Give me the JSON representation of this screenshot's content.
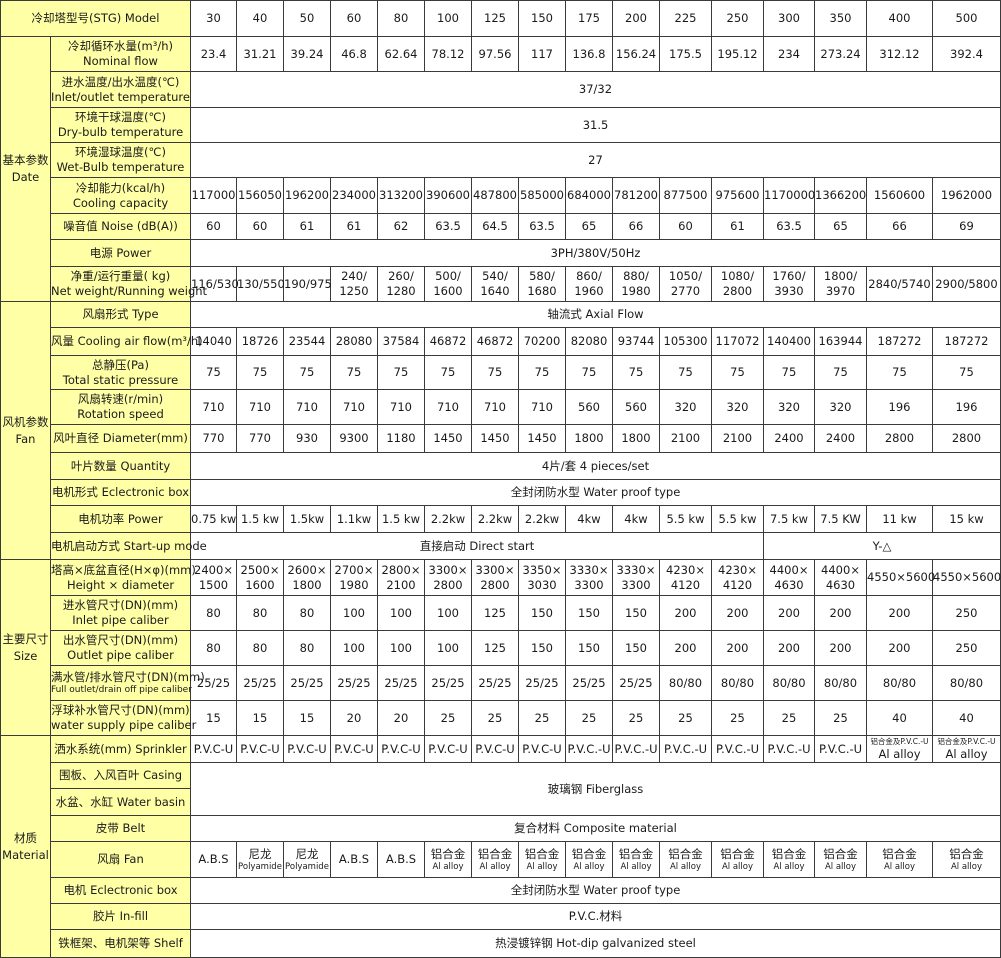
{
  "header": {
    "label": "冷却塔型号(STG) Model",
    "models": [
      "30",
      "40",
      "50",
      "60",
      "80",
      "100",
      "125",
      "150",
      "175",
      "200",
      "225",
      "250",
      "300",
      "350",
      "400",
      "500"
    ]
  },
  "groups": [
    {
      "label": [
        "基本参数",
        "Date"
      ],
      "rows": [
        {
          "label": [
            "冷却循环水量(m³/h)",
            "Nominal flow"
          ],
          "values": [
            "23.4",
            "31.21",
            "39.24",
            "46.8",
            "62.64",
            "78.12",
            "97.56",
            "117",
            "136.8",
            "156.24",
            "175.5",
            "195.12",
            "234",
            "273.24",
            "312.12",
            "392.4"
          ]
        },
        {
          "label": [
            "进水温度/出水温度(℃)",
            "Inlet/outlet temperature"
          ],
          "span": "37/32"
        },
        {
          "label": [
            "环境干球温度(℃)",
            "Dry-bulb temperature"
          ],
          "span": "31.5"
        },
        {
          "label": [
            "环境湿球温度(℃)",
            "Wet-Bulb temperature"
          ],
          "span": "27"
        },
        {
          "label": [
            "冷却能力(kcal/h)",
            "Cooling capacity"
          ],
          "values": [
            "117000",
            "156050",
            "196200",
            "234000",
            "313200",
            "390600",
            "487800",
            "585000",
            "684000",
            "781200",
            "877500",
            "975600",
            "1170000",
            "1366200",
            "1560600",
            "1962000"
          ]
        },
        {
          "label": [
            "噪音值 Noise (dB(A))"
          ],
          "values": [
            "60",
            "60",
            "61",
            "61",
            "62",
            "63.5",
            "64.5",
            "63.5",
            "65",
            "66",
            "60",
            "61",
            "63.5",
            "65",
            "66",
            "69"
          ]
        },
        {
          "label": [
            "电源 Power"
          ],
          "span": "3PH/380V/50Hz"
        },
        {
          "label": [
            "净重/运行重量( kg)",
            "Net weight/Running weight"
          ],
          "values": [
            "116/530",
            "130/550",
            "190/975",
            [
              "240/",
              "1250"
            ],
            [
              "260/",
              "1280"
            ],
            [
              "500/",
              "1600"
            ],
            [
              "540/",
              "1640"
            ],
            [
              "580/",
              "1680"
            ],
            [
              "860/",
              "1960"
            ],
            [
              "880/",
              "1980"
            ],
            [
              "1050/",
              "2770"
            ],
            [
              "1080/",
              "2800"
            ],
            [
              "1760/",
              "3930"
            ],
            [
              "1800/",
              "3970"
            ],
            "2840/5740",
            "2900/5800"
          ]
        }
      ]
    },
    {
      "label": [
        "风机参数",
        "Fan"
      ],
      "rows": [
        {
          "label": [
            "风扇形式 Type"
          ],
          "span": "轴流式 Axial Flow"
        },
        {
          "label": [
            "风量 Cooling air flow(m³/h)"
          ],
          "values": [
            "14040",
            "18726",
            "23544",
            "28080",
            "37584",
            "46872",
            "46872",
            "70200",
            "82080",
            "93744",
            "105300",
            "117072",
            "140400",
            "163944",
            "187272",
            "187272"
          ]
        },
        {
          "label": [
            "总静压(Pa)",
            "Total static pressure"
          ],
          "values": [
            "75",
            "75",
            "75",
            "75",
            "75",
            "75",
            "75",
            "75",
            "75",
            "75",
            "75",
            "75",
            "75",
            "75",
            "75",
            "75"
          ]
        },
        {
          "label": [
            "风扇转速(r/min)",
            "Rotation speed"
          ],
          "values": [
            "710",
            "710",
            "710",
            "710",
            "710",
            "710",
            "710",
            "710",
            "560",
            "560",
            "320",
            "320",
            "320",
            "320",
            "196",
            "196"
          ]
        },
        {
          "label": [
            "风叶直径 Diameter(mm)"
          ],
          "values": [
            "770",
            "770",
            "930",
            "9300",
            "1180",
            "1450",
            "1450",
            "1450",
            "1800",
            "1800",
            "2100",
            "2100",
            "2400",
            "2400",
            "2800",
            "2800"
          ]
        },
        {
          "label": [
            "叶片数量 Quantity"
          ],
          "span": "4片/套 4 pieces/set"
        },
        {
          "label": [
            "电机形式 Eclectronic box"
          ],
          "span": "全封闭防水型 Water proof type"
        },
        {
          "label": [
            "电机功率 Power"
          ],
          "values": [
            "0.75 kw",
            "1.5 kw",
            "1.5kw",
            "1.1kw",
            "1.5 kw",
            "2.2kw",
            "2.2kw",
            "2.2kw",
            "4kw",
            "4kw",
            "5.5 kw",
            "5.5 kw",
            "7.5 kw",
            "7.5 KW",
            "11 kw",
            "15 kw"
          ]
        },
        {
          "label": [
            "电机启动方式 Start-up mode"
          ],
          "spans": [
            {
              "text": "直接启动 Direct start",
              "cols": 12
            },
            {
              "text": "Y-△",
              "cols": 4
            }
          ]
        }
      ]
    },
    {
      "label": [
        "主要尺寸",
        "Size"
      ],
      "rows": [
        {
          "label": [
            "塔高×底盆直径(H×φ)(mm)",
            "Height × diameter"
          ],
          "values": [
            [
              "2400×",
              "1500"
            ],
            [
              "2500×",
              "1600"
            ],
            [
              "2600×",
              "1800"
            ],
            [
              "2700×",
              "1980"
            ],
            [
              "2800×",
              "2100"
            ],
            [
              "3300×",
              "2800"
            ],
            [
              "3300×",
              "2800"
            ],
            [
              "3350×",
              "3030"
            ],
            [
              "3330×",
              "3300"
            ],
            [
              "3330×",
              "3300"
            ],
            [
              "4230×",
              "4120"
            ],
            [
              "4230×",
              "4120"
            ],
            [
              "4400×",
              "4630"
            ],
            [
              "4400×",
              "4630"
            ],
            "4550×5600",
            "4550×5600"
          ]
        },
        {
          "label": [
            "进水管尺寸(DN)(mm)",
            "Inlet pipe caliber"
          ],
          "values": [
            "80",
            "80",
            "80",
            "100",
            "100",
            "100",
            "125",
            "150",
            "150",
            "150",
            "200",
            "200",
            "200",
            "200",
            "200",
            "250"
          ]
        },
        {
          "label": [
            "出水管尺寸(DN)(mm)",
            "Outlet pipe caliber"
          ],
          "values": [
            "80",
            "80",
            "80",
            "100",
            "100",
            "100",
            "125",
            "150",
            "150",
            "150",
            "200",
            "200",
            "200",
            "200",
            "200",
            "250"
          ]
        },
        {
          "label": [
            "满水管/排水管尺寸(DN)(mm)",
            "Full outlet/drain off pipe caliber"
          ],
          "label_small_line": 1,
          "values": [
            "25/25",
            "25/25",
            "25/25",
            "25/25",
            "25/25",
            "25/25",
            "25/25",
            "25/25",
            "25/25",
            "25/25",
            "80/80",
            "80/80",
            "80/80",
            "80/80",
            "80/80",
            "80/80"
          ]
        },
        {
          "label": [
            "浮球补水管尺寸(DN)(mm)",
            "water supply pipe caliber"
          ],
          "values": [
            "15",
            "15",
            "15",
            "20",
            "20",
            "25",
            "25",
            "25",
            "25",
            "25",
            "25",
            "25",
            "25",
            "25",
            "40",
            "40"
          ]
        }
      ]
    },
    {
      "label": [
        "材质",
        "Material"
      ],
      "rows": [
        {
          "label": [
            "洒水系统(mm) Sprinkler"
          ],
          "small_line": 0,
          "values": [
            "P.V.C-U",
            "P.V.C-U",
            "P.V.C-U",
            "P.V.C-U",
            "P.V.C-U",
            "P.V.C-U",
            "P.V.C-U",
            "P.V.C-U",
            "P.V.C.-U",
            "P.V.C.-U",
            "P.V.C.-U",
            "P.V.C.-U",
            "P.V.C.-U",
            "P.V.C.-U",
            [
              "铝合金及P.V.C.-U",
              "Al alloy"
            ],
            [
              "铝合金及P.V.C.-U",
              "Al alloy"
            ]
          ]
        },
        {
          "label": [
            "围板、入风百叶 Casing"
          ],
          "span": "玻璃钢 Fiberglass",
          "rowspan": 2
        },
        {
          "label": [
            "水盆、水缸 Water basin"
          ],
          "merged": true
        },
        {
          "label": [
            "皮带 Belt"
          ],
          "span": "复合材料 Composite material"
        },
        {
          "label": [
            "风扇 Fan"
          ],
          "small_line": 1,
          "values": [
            "A.B.S",
            [
              "尼龙",
              "Polyamide"
            ],
            [
              "尼龙",
              "Polyamide"
            ],
            "A.B.S",
            "A.B.S",
            [
              "铝合金",
              "Al alloy"
            ],
            [
              "铝合金",
              "Al alloy"
            ],
            [
              "铝合金",
              "Al alloy"
            ],
            [
              "铝合金",
              "Al alloy"
            ],
            [
              "铝合金",
              "Al alloy"
            ],
            [
              "铝合金",
              "Al alloy"
            ],
            [
              "铝合金",
              "Al alloy"
            ],
            [
              "铝合金",
              "Al alloy"
            ],
            [
              "铝合金",
              "Al alloy"
            ],
            [
              "铝合金",
              "Al alloy"
            ],
            [
              "铝合金",
              "Al alloy"
            ]
          ]
        },
        {
          "label": [
            "电机 Eclectronic box"
          ],
          "span": "全封闭防水型 Water proof type"
        },
        {
          "label": [
            "胶片 In-fill"
          ],
          "span": "P.V.C.材料"
        },
        {
          "label": [
            "铁框架、电机架等 Shelf"
          ],
          "span": "热浸镀锌钢 Hot-dip galvanized steel"
        }
      ]
    }
  ],
  "colors": {
    "label_bg": "#ffffa6",
    "border": "#3a3a3a"
  }
}
